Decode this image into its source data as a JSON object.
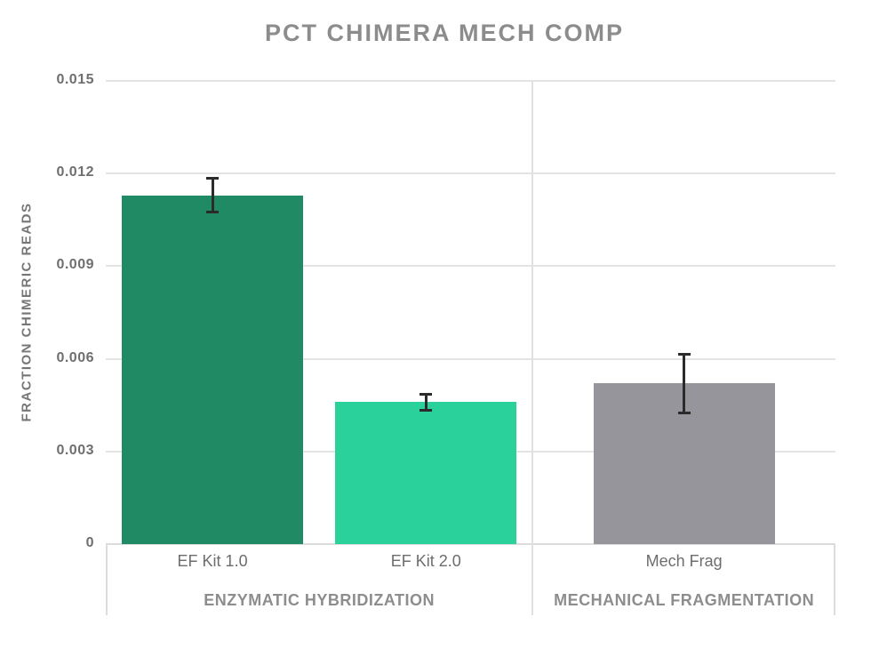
{
  "page": {
    "title": "PCT CHIMERA MECH COMP"
  },
  "chart_data": {
    "type": "bar",
    "title": "PCT CHIMERA MECH COMP",
    "ylabel": "FRACTION CHIMERIC READS",
    "xlabel": "",
    "ylim": [
      0,
      0.015
    ],
    "yticks": [
      0,
      0.003,
      0.006,
      0.009,
      0.012,
      0.015
    ],
    "ytick_labels": [
      "0",
      "0.003",
      "0.006",
      "0.009",
      "0.012",
      "0.015"
    ],
    "grid": true,
    "legend_position": "none",
    "groups": [
      {
        "label": "ENZYMATIC HYBRIDIZATION",
        "bars": [
          {
            "label": "EF Kit 1.0",
            "value": 0.0113,
            "error": 0.0006,
            "color": "#1f8a63"
          },
          {
            "label": "EF Kit 2.0",
            "value": 0.0046,
            "error": 0.0003,
            "color": "#2bd19b"
          }
        ]
      },
      {
        "label": "MECHANICAL FRAGMENTATION",
        "bars": [
          {
            "label": "Mech Frag",
            "value": 0.0052,
            "error": 0.001,
            "color": "#95959b"
          }
        ]
      }
    ],
    "colors": {
      "grid": "#e4e4e4",
      "axis": "#dcdcdc",
      "divider": "#e0e0e0",
      "error_bar": "#2b2b2b",
      "title_text": "#8c8c8c",
      "tick_text": "#6f6f6f",
      "bar_label_text": "#6d6d6f",
      "group_label_text": "#8d8d8d"
    }
  }
}
